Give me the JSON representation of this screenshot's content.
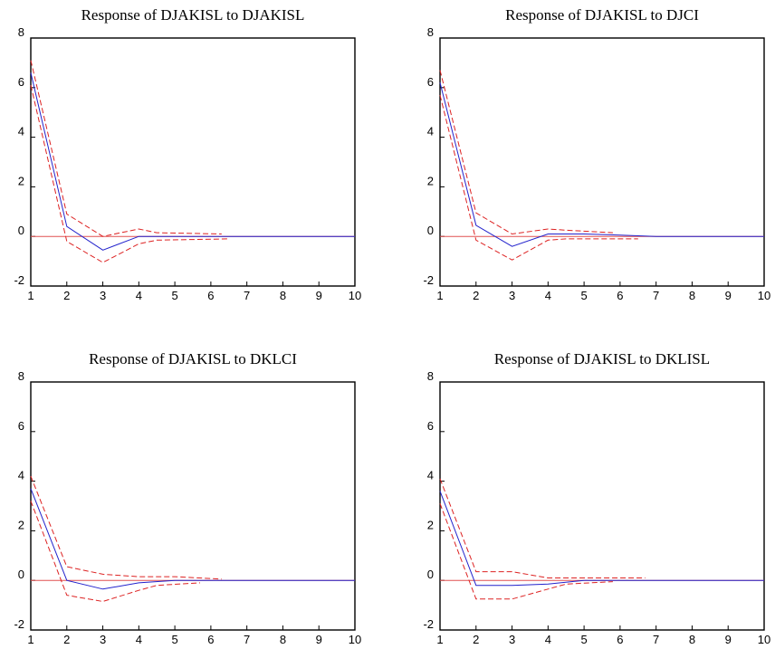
{
  "chart_data": [
    {
      "type": "line",
      "title": "Response of DJAKISL to DJAKISL",
      "xlim": [
        1,
        10
      ],
      "ylim": [
        -2,
        8
      ],
      "xticks": [
        "1",
        "2",
        "3",
        "4",
        "5",
        "6",
        "7",
        "8",
        "9",
        "10"
      ],
      "yticks": [
        "-2",
        "0",
        "2",
        "4",
        "6",
        "8"
      ],
      "grid": false,
      "zero_line": true,
      "series": [
        {
          "role": "response",
          "color": "#2222cc",
          "style": "solid",
          "x": [
            1,
            2,
            3,
            4,
            5,
            6,
            7,
            8,
            9,
            10
          ],
          "values": [
            6.6,
            0.4,
            -0.55,
            0.0,
            0.0,
            0.0,
            0.0,
            0.0,
            0.0,
            0.0
          ]
        },
        {
          "role": "upper_band",
          "color": "#dd2222",
          "style": "dashed",
          "x": [
            1,
            2,
            3,
            4,
            4.5,
            6.3
          ],
          "values": [
            7.1,
            0.9,
            0.0,
            0.3,
            0.15,
            0.1
          ]
        },
        {
          "role": "lower_band",
          "color": "#dd2222",
          "style": "dashed",
          "x": [
            1,
            2,
            3,
            4,
            4.5,
            6.5
          ],
          "values": [
            6.1,
            -0.2,
            -1.05,
            -0.3,
            -0.15,
            -0.1
          ]
        }
      ]
    },
    {
      "type": "line",
      "title": "Response of DJAKISL to DJCI",
      "xlim": [
        1,
        10
      ],
      "ylim": [
        -2,
        8
      ],
      "xticks": [
        "1",
        "2",
        "3",
        "4",
        "5",
        "6",
        "7",
        "8",
        "9",
        "10"
      ],
      "yticks": [
        "-2",
        "0",
        "2",
        "4",
        "6",
        "8"
      ],
      "grid": false,
      "zero_line": true,
      "series": [
        {
          "role": "response",
          "color": "#2222cc",
          "style": "solid",
          "x": [
            1,
            2,
            3,
            4,
            5,
            6,
            7,
            8,
            9,
            10
          ],
          "values": [
            6.2,
            0.45,
            -0.4,
            0.1,
            0.1,
            0.05,
            0.0,
            0.0,
            0.0,
            0.0
          ]
        },
        {
          "role": "upper_band",
          "color": "#dd2222",
          "style": "dashed",
          "x": [
            1,
            2,
            3,
            4,
            4.5,
            5.8
          ],
          "values": [
            6.7,
            0.95,
            0.1,
            0.3,
            0.25,
            0.15
          ]
        },
        {
          "role": "lower_band",
          "color": "#dd2222",
          "style": "dashed",
          "x": [
            1,
            2,
            3,
            4,
            4.5,
            6.5
          ],
          "values": [
            5.7,
            -0.15,
            -0.95,
            -0.15,
            -0.1,
            -0.1
          ]
        }
      ]
    },
    {
      "type": "line",
      "title": "Response of DJAKISL to DKLCI",
      "xlim": [
        1,
        10
      ],
      "ylim": [
        -2,
        8
      ],
      "xticks": [
        "1",
        "2",
        "3",
        "4",
        "5",
        "6",
        "7",
        "8",
        "9",
        "10"
      ],
      "yticks": [
        "-2",
        "0",
        "2",
        "4",
        "6",
        "8"
      ],
      "grid": false,
      "zero_line": true,
      "series": [
        {
          "role": "response",
          "color": "#2222cc",
          "style": "solid",
          "x": [
            1,
            2,
            3,
            4,
            5,
            6,
            7,
            8,
            9,
            10
          ],
          "values": [
            3.7,
            0.0,
            -0.35,
            -0.1,
            0.0,
            0.0,
            0.0,
            0.0,
            0.0,
            0.0
          ]
        },
        {
          "role": "upper_band",
          "color": "#dd2222",
          "style": "dashed",
          "x": [
            1,
            2,
            3,
            4,
            4.5,
            5,
            6.3
          ],
          "values": [
            4.2,
            0.55,
            0.25,
            0.15,
            0.15,
            0.15,
            0.05
          ]
        },
        {
          "role": "lower_band",
          "color": "#dd2222",
          "style": "dashed",
          "x": [
            1,
            2,
            3,
            4,
            4.5,
            5.7
          ],
          "values": [
            3.2,
            -0.6,
            -0.85,
            -0.4,
            -0.2,
            -0.1
          ]
        }
      ]
    },
    {
      "type": "line",
      "title": "Response of DJAKISL to DKLISL",
      "xlim": [
        1,
        10
      ],
      "ylim": [
        -2,
        8
      ],
      "xticks": [
        "1",
        "2",
        "3",
        "4",
        "5",
        "6",
        "7",
        "8",
        "9",
        "10"
      ],
      "yticks": [
        "-2",
        "0",
        "2",
        "4",
        "6",
        "8"
      ],
      "grid": false,
      "zero_line": true,
      "series": [
        {
          "role": "response",
          "color": "#2222cc",
          "style": "solid",
          "x": [
            1,
            2,
            3,
            4,
            5,
            6,
            7,
            8,
            9,
            10
          ],
          "values": [
            3.6,
            -0.2,
            -0.2,
            -0.15,
            0.0,
            0.0,
            0.0,
            0.0,
            0.0,
            0.0
          ]
        },
        {
          "role": "upper_band",
          "color": "#dd2222",
          "style": "dashed",
          "x": [
            1,
            2,
            3,
            4,
            4.5,
            6.7
          ],
          "values": [
            4.1,
            0.35,
            0.35,
            0.1,
            0.1,
            0.1
          ]
        },
        {
          "role": "lower_band",
          "color": "#dd2222",
          "style": "dashed",
          "x": [
            1,
            2,
            3,
            4,
            4.5,
            5.8
          ],
          "values": [
            3.1,
            -0.75,
            -0.75,
            -0.35,
            -0.15,
            -0.05
          ]
        }
      ]
    }
  ]
}
